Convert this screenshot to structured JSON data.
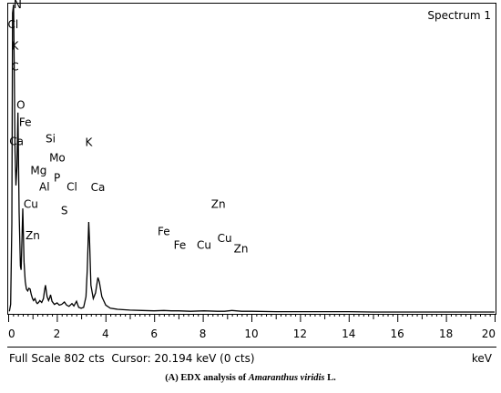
{
  "figure": {
    "spectrum_label": "Spectrum 1",
    "status_text": "Full Scale 802 cts  Cursor: 20.194 keV (0 cts)",
    "caption_prefix": "(A) EDX analysis of ",
    "caption_species": "Amaranthus viridis",
    "caption_suffix": " L."
  },
  "chart_data": {
    "type": "line",
    "xlabel": "keV",
    "ylabel": "",
    "xlim": [
      0,
      20
    ],
    "ylim": [
      0,
      802
    ],
    "grid": false,
    "x_ticks": [
      0,
      2,
      4,
      6,
      8,
      10,
      12,
      14,
      16,
      18,
      20
    ],
    "x_tick_labels": [
      "0",
      "2",
      "4",
      "6",
      "8",
      "10",
      "12",
      "14",
      "16",
      "18",
      "20"
    ],
    "full_scale_cts": 802,
    "cursor_kev": 20.194,
    "cursor_cts": 0,
    "spectrum": {
      "kev": [
        0.05,
        0.1,
        0.15,
        0.18,
        0.22,
        0.25,
        0.28,
        0.32,
        0.36,
        0.4,
        0.45,
        0.5,
        0.53,
        0.56,
        0.6,
        0.65,
        0.7,
        0.75,
        0.8,
        0.85,
        0.9,
        0.95,
        1.0,
        1.04,
        1.1,
        1.16,
        1.2,
        1.25,
        1.3,
        1.38,
        1.45,
        1.49,
        1.53,
        1.6,
        1.66,
        1.71,
        1.74,
        1.8,
        1.9,
        2.01,
        2.1,
        2.2,
        2.31,
        2.4,
        2.5,
        2.62,
        2.7,
        2.81,
        2.9,
        3.0,
        3.1,
        3.2,
        3.25,
        3.31,
        3.35,
        3.4,
        3.5,
        3.59,
        3.65,
        3.69,
        3.75,
        3.85,
        4.01,
        4.2,
        4.5,
        5.0,
        5.5,
        6.0,
        6.4,
        6.7,
        7.0,
        7.5,
        8.05,
        8.6,
        8.9,
        9.2,
        9.6,
        10.0,
        11.0,
        12.0,
        13.0,
        14.0,
        15.0,
        16.0,
        17.0,
        18.0,
        19.0,
        20.0
      ],
      "cts": [
        2,
        20,
        230,
        780,
        802,
        620,
        420,
        330,
        380,
        520,
        260,
        120,
        110,
        180,
        270,
        130,
        80,
        60,
        55,
        62,
        60,
        45,
        35,
        30,
        35,
        25,
        22,
        25,
        30,
        25,
        35,
        55,
        70,
        40,
        30,
        38,
        45,
        28,
        20,
        24,
        18,
        20,
        26,
        18,
        15,
        22,
        16,
        28,
        12,
        10,
        12,
        40,
        110,
        235,
        180,
        70,
        35,
        50,
        75,
        90,
        78,
        40,
        18,
        10,
        7,
        5,
        4,
        3,
        4,
        3,
        3,
        2,
        3,
        2,
        2,
        4,
        2,
        2,
        1,
        1,
        1,
        1,
        0,
        0,
        0,
        0,
        0,
        0
      ]
    },
    "peak_labels": [
      {
        "text": "N",
        "kev": 0.39,
        "cts": 793
      },
      {
        "text": "Cl",
        "kev": 0.2,
        "cts": 740
      },
      {
        "text": "K",
        "kev": 0.28,
        "cts": 685
      },
      {
        "text": "C",
        "kev": 0.28,
        "cts": 630
      },
      {
        "text": "O",
        "kev": 0.52,
        "cts": 530
      },
      {
        "text": "Fe",
        "kev": 0.7,
        "cts": 485
      },
      {
        "text": "Ca",
        "kev": 0.34,
        "cts": 435
      },
      {
        "text": "Si",
        "kev": 1.74,
        "cts": 442
      },
      {
        "text": "K",
        "kev": 3.31,
        "cts": 433
      },
      {
        "text": "Mo",
        "kev": 2.02,
        "cts": 393
      },
      {
        "text": "Mg",
        "kev": 1.25,
        "cts": 360
      },
      {
        "text": "P",
        "kev": 2.01,
        "cts": 340
      },
      {
        "text": "Al",
        "kev": 1.49,
        "cts": 317
      },
      {
        "text": "Cl",
        "kev": 2.62,
        "cts": 317
      },
      {
        "text": "Ca",
        "kev": 3.69,
        "cts": 315
      },
      {
        "text": "Cu",
        "kev": 0.93,
        "cts": 272
      },
      {
        "text": "S",
        "kev": 2.31,
        "cts": 255
      },
      {
        "text": "Zn",
        "kev": 1.01,
        "cts": 190
      },
      {
        "text": "Fe",
        "kev": 6.4,
        "cts": 200
      },
      {
        "text": "Zn",
        "kev": 8.64,
        "cts": 272
      },
      {
        "text": "Fe",
        "kev": 7.06,
        "cts": 165
      },
      {
        "text": "Cu",
        "kev": 8.05,
        "cts": 165
      },
      {
        "text": "Cu",
        "kev": 8.9,
        "cts": 183
      },
      {
        "text": "Zn",
        "kev": 9.57,
        "cts": 155
      }
    ],
    "colors": {
      "trace": "#000000",
      "axis": "#000000",
      "background": "#ffffff"
    }
  }
}
